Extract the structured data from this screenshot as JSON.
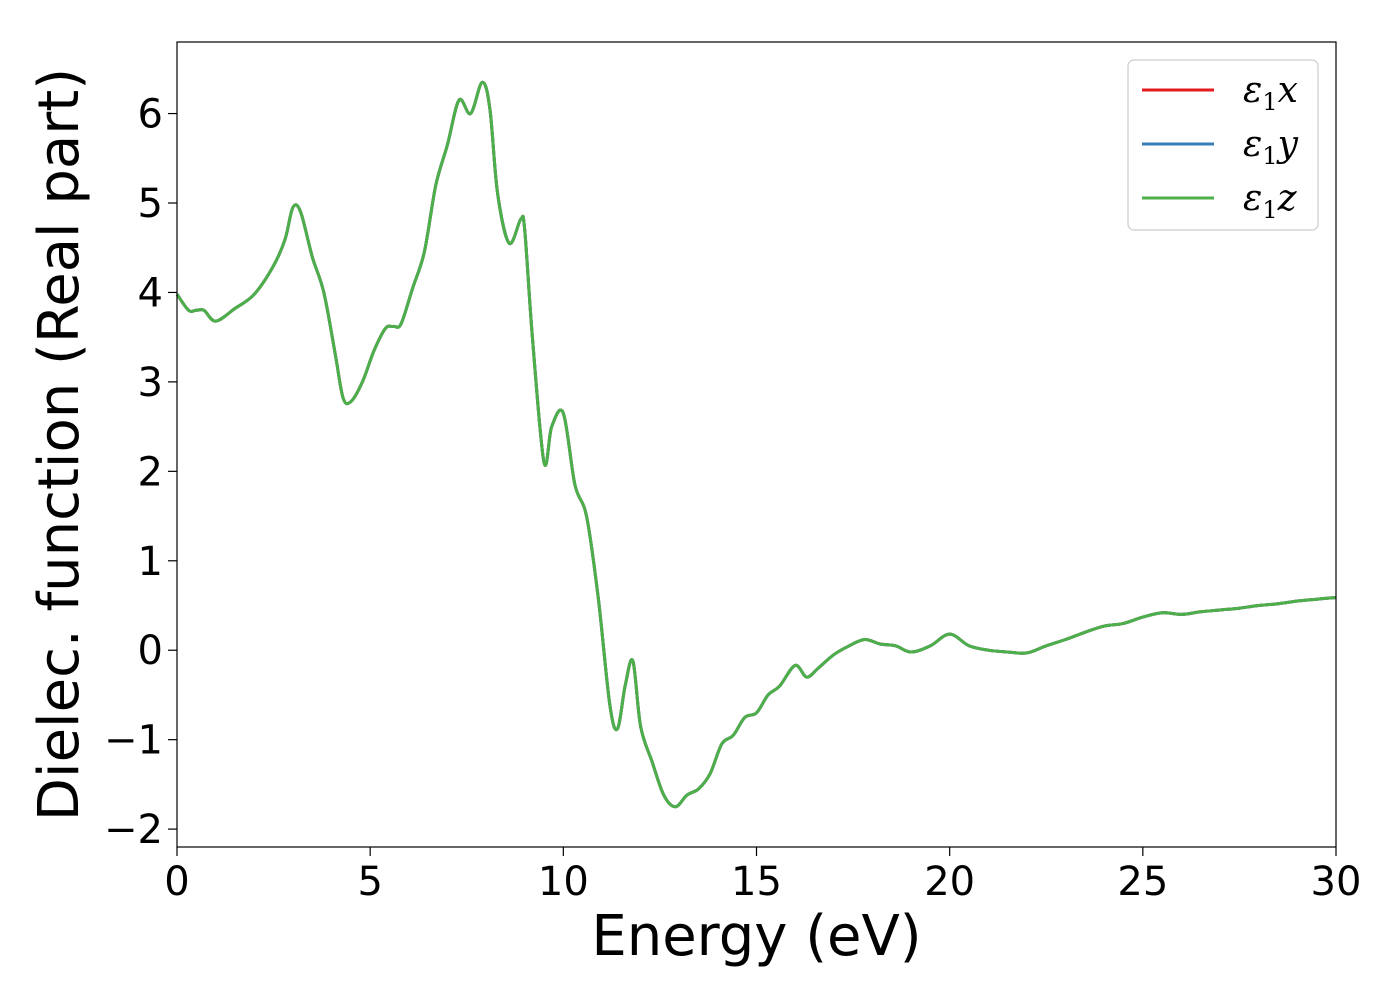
{
  "chart_data": {
    "type": "line",
    "xlabel": "Energy (eV)",
    "ylabel": "Dielec. function (Real part)",
    "xlim": [
      0,
      30
    ],
    "ylim": [
      -2.2,
      6.8
    ],
    "xticks": [
      0,
      5,
      10,
      15,
      20,
      25,
      30
    ],
    "yticks": [
      -2,
      -1,
      0,
      1,
      2,
      3,
      4,
      5,
      6
    ],
    "xtick_labels": [
      "0",
      "5",
      "10",
      "15",
      "20",
      "25",
      "30"
    ],
    "ytick_labels": [
      "−2",
      "−1",
      "0",
      "1",
      "2",
      "3",
      "4",
      "5",
      "6"
    ],
    "grid": false,
    "legend_position": "top-right",
    "series": [
      {
        "name": "ε₁x",
        "legend_main": "ε",
        "legend_sub": "1",
        "legend_var": "x",
        "color": "#e41a1c",
        "x": [
          0,
          0.3,
          0.5,
          0.7,
          1.0,
          1.5,
          2.0,
          2.5,
          2.8,
          3.0,
          3.2,
          3.5,
          3.8,
          4.1,
          4.3,
          4.5,
          4.8,
          5.1,
          5.4,
          5.6,
          5.8,
          6.1,
          6.4,
          6.7,
          7.0,
          7.3,
          7.6,
          7.9,
          8.1,
          8.3,
          8.6,
          8.9,
          9.0,
          9.2,
          9.5,
          9.7,
          10.0,
          10.3,
          10.6,
          10.9,
          11.2,
          11.4,
          11.6,
          11.8,
          12.0,
          12.3,
          12.6,
          12.9,
          13.2,
          13.5,
          13.8,
          14.1,
          14.4,
          14.7,
          15.0,
          15.3,
          15.6,
          16.0,
          16.3,
          16.6,
          17.0,
          17.4,
          17.8,
          18.2,
          18.6,
          19.0,
          19.5,
          20.0,
          20.5,
          21.0,
          21.5,
          22.0,
          22.5,
          23.0,
          23.5,
          24.0,
          24.5,
          25.0,
          25.5,
          26.0,
          26.5,
          27.0,
          27.5,
          28.0,
          28.5,
          29.0,
          29.5,
          30.0
        ],
        "y": [
          3.98,
          3.8,
          3.8,
          3.8,
          3.68,
          3.82,
          3.98,
          4.3,
          4.6,
          4.95,
          4.9,
          4.4,
          4.0,
          3.3,
          2.82,
          2.78,
          3.0,
          3.35,
          3.6,
          3.62,
          3.65,
          4.05,
          4.45,
          5.2,
          5.65,
          6.15,
          6.0,
          6.35,
          6.05,
          5.1,
          4.55,
          4.82,
          4.7,
          3.5,
          2.1,
          2.5,
          2.65,
          1.85,
          1.5,
          0.6,
          -0.6,
          -0.88,
          -0.4,
          -0.12,
          -0.85,
          -1.25,
          -1.62,
          -1.75,
          -1.62,
          -1.55,
          -1.38,
          -1.05,
          -0.95,
          -0.75,
          -0.7,
          -0.5,
          -0.4,
          -0.17,
          -0.3,
          -0.2,
          -0.05,
          0.05,
          0.12,
          0.07,
          0.05,
          -0.02,
          0.05,
          0.18,
          0.05,
          0.0,
          -0.02,
          -0.03,
          0.05,
          0.12,
          0.2,
          0.27,
          0.3,
          0.37,
          0.42,
          0.4,
          0.43,
          0.45,
          0.47,
          0.5,
          0.52,
          0.55,
          0.57,
          0.59
        ]
      },
      {
        "name": "ε₁y",
        "legend_main": "ε",
        "legend_sub": "1",
        "legend_var": "y",
        "color": "#377eb8",
        "x": [
          0,
          0.3,
          0.5,
          0.7,
          1.0,
          1.5,
          2.0,
          2.5,
          2.8,
          3.0,
          3.2,
          3.5,
          3.8,
          4.1,
          4.3,
          4.5,
          4.8,
          5.1,
          5.4,
          5.6,
          5.8,
          6.1,
          6.4,
          6.7,
          7.0,
          7.3,
          7.6,
          7.9,
          8.1,
          8.3,
          8.6,
          8.9,
          9.0,
          9.2,
          9.5,
          9.7,
          10.0,
          10.3,
          10.6,
          10.9,
          11.2,
          11.4,
          11.6,
          11.8,
          12.0,
          12.3,
          12.6,
          12.9,
          13.2,
          13.5,
          13.8,
          14.1,
          14.4,
          14.7,
          15.0,
          15.3,
          15.6,
          16.0,
          16.3,
          16.6,
          17.0,
          17.4,
          17.8,
          18.2,
          18.6,
          19.0,
          19.5,
          20.0,
          20.5,
          21.0,
          21.5,
          22.0,
          22.5,
          23.0,
          23.5,
          24.0,
          24.5,
          25.0,
          25.5,
          26.0,
          26.5,
          27.0,
          27.5,
          28.0,
          28.5,
          29.0,
          29.5,
          30.0
        ],
        "y": [
          3.98,
          3.8,
          3.8,
          3.8,
          3.68,
          3.82,
          3.98,
          4.3,
          4.6,
          4.95,
          4.9,
          4.4,
          4.0,
          3.3,
          2.82,
          2.78,
          3.0,
          3.35,
          3.6,
          3.62,
          3.65,
          4.05,
          4.45,
          5.2,
          5.65,
          6.15,
          6.0,
          6.35,
          6.05,
          5.1,
          4.55,
          4.82,
          4.7,
          3.5,
          2.1,
          2.5,
          2.65,
          1.85,
          1.5,
          0.6,
          -0.6,
          -0.88,
          -0.4,
          -0.12,
          -0.85,
          -1.25,
          -1.62,
          -1.75,
          -1.62,
          -1.55,
          -1.38,
          -1.05,
          -0.95,
          -0.75,
          -0.7,
          -0.5,
          -0.4,
          -0.17,
          -0.3,
          -0.2,
          -0.05,
          0.05,
          0.12,
          0.07,
          0.05,
          -0.02,
          0.05,
          0.18,
          0.05,
          0.0,
          -0.02,
          -0.03,
          0.05,
          0.12,
          0.2,
          0.27,
          0.3,
          0.37,
          0.42,
          0.4,
          0.43,
          0.45,
          0.47,
          0.5,
          0.52,
          0.55,
          0.57,
          0.59
        ]
      },
      {
        "name": "ε₁z",
        "legend_main": "ε",
        "legend_sub": "1",
        "legend_var": "z",
        "color": "#4daf4a",
        "x": [
          0,
          0.3,
          0.5,
          0.7,
          1.0,
          1.5,
          2.0,
          2.5,
          2.8,
          3.0,
          3.2,
          3.5,
          3.8,
          4.1,
          4.3,
          4.5,
          4.8,
          5.1,
          5.4,
          5.6,
          5.8,
          6.1,
          6.4,
          6.7,
          7.0,
          7.3,
          7.6,
          7.9,
          8.1,
          8.3,
          8.6,
          8.9,
          9.0,
          9.2,
          9.5,
          9.7,
          10.0,
          10.3,
          10.6,
          10.9,
          11.2,
          11.4,
          11.6,
          11.8,
          12.0,
          12.3,
          12.6,
          12.9,
          13.2,
          13.5,
          13.8,
          14.1,
          14.4,
          14.7,
          15.0,
          15.3,
          15.6,
          16.0,
          16.3,
          16.6,
          17.0,
          17.4,
          17.8,
          18.2,
          18.6,
          19.0,
          19.5,
          20.0,
          20.5,
          21.0,
          21.5,
          22.0,
          22.5,
          23.0,
          23.5,
          24.0,
          24.5,
          25.0,
          25.5,
          26.0,
          26.5,
          27.0,
          27.5,
          28.0,
          28.5,
          29.0,
          29.5,
          30.0
        ],
        "y": [
          3.98,
          3.8,
          3.8,
          3.8,
          3.68,
          3.82,
          3.98,
          4.3,
          4.6,
          4.95,
          4.9,
          4.4,
          4.0,
          3.3,
          2.82,
          2.78,
          3.0,
          3.35,
          3.6,
          3.62,
          3.65,
          4.05,
          4.45,
          5.2,
          5.65,
          6.15,
          6.0,
          6.35,
          6.05,
          5.1,
          4.55,
          4.82,
          4.7,
          3.5,
          2.1,
          2.5,
          2.65,
          1.85,
          1.5,
          0.6,
          -0.6,
          -0.88,
          -0.4,
          -0.12,
          -0.85,
          -1.25,
          -1.62,
          -1.75,
          -1.62,
          -1.55,
          -1.38,
          -1.05,
          -0.95,
          -0.75,
          -0.7,
          -0.5,
          -0.4,
          -0.17,
          -0.3,
          -0.2,
          -0.05,
          0.05,
          0.12,
          0.07,
          0.05,
          -0.02,
          0.05,
          0.18,
          0.05,
          0.0,
          -0.02,
          -0.03,
          0.05,
          0.12,
          0.2,
          0.27,
          0.3,
          0.37,
          0.42,
          0.4,
          0.43,
          0.45,
          0.47,
          0.5,
          0.52,
          0.55,
          0.57,
          0.59
        ]
      }
    ]
  }
}
